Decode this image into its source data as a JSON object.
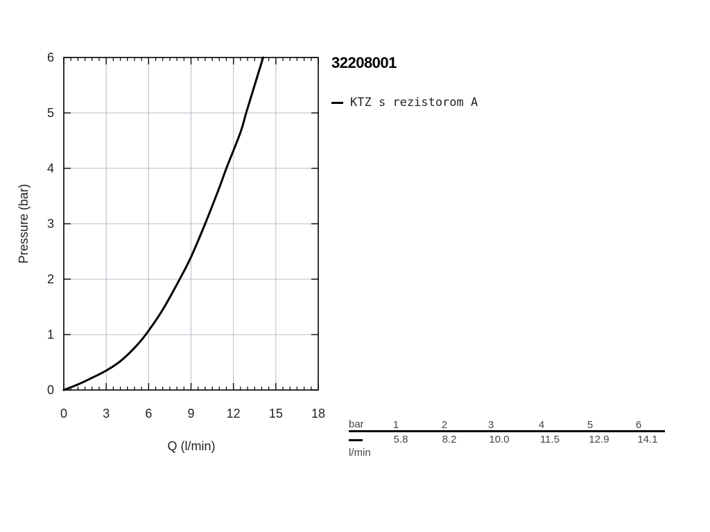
{
  "title": "32208001",
  "legend": {
    "label": "KTZ s rezistorom A",
    "color": "#000000"
  },
  "chart_data": {
    "type": "line",
    "xlabel": "Q (l/min)",
    "ylabel": "Pressure (bar)",
    "xlim": [
      0,
      18
    ],
    "ylim": [
      0,
      6
    ],
    "x_ticks": [
      0,
      3,
      6,
      9,
      12,
      15,
      18
    ],
    "y_ticks": [
      0,
      1,
      2,
      3,
      4,
      5,
      6
    ],
    "grid": true,
    "series": [
      {
        "name": "KTZ s rezistorom A",
        "color": "#000000",
        "x": [
          0,
          1,
          2,
          3,
          4,
          5,
          5.8,
          7,
          8.2,
          9,
          10.0,
          11,
          11.5,
          12.5,
          12.9,
          13.5,
          14.1
        ],
        "y": [
          0,
          0.1,
          0.22,
          0.35,
          0.52,
          0.76,
          1.0,
          1.45,
          2.0,
          2.4,
          3.0,
          3.65,
          4.0,
          4.65,
          5.0,
          5.5,
          6.0
        ]
      }
    ]
  },
  "table": {
    "row_unit": "bar",
    "value_unit": "l/min",
    "pressures": [
      "1",
      "2",
      "3",
      "4",
      "5",
      "6"
    ],
    "flows": [
      "5.8",
      "8.2",
      "10.0",
      "11.5",
      "12.9",
      "14.1"
    ]
  }
}
